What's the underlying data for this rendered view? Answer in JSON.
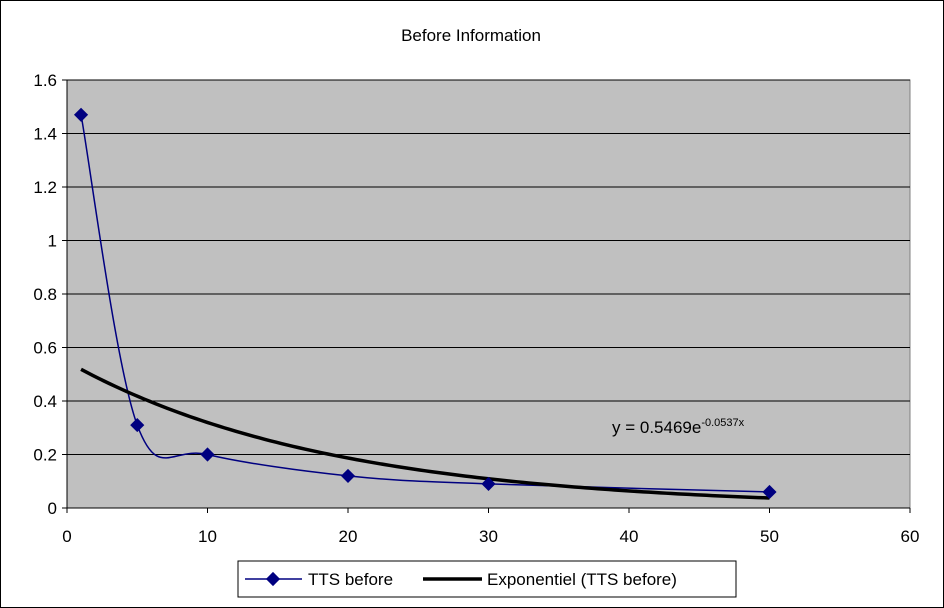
{
  "colors": {
    "plot_background": "#c0c0c0",
    "series": "#000080",
    "trendline": "#000000",
    "gridline": "#000000"
  },
  "chart_data": {
    "type": "scatter",
    "title": "Before Information",
    "xlabel": "",
    "ylabel": "",
    "xlim": [
      0,
      60
    ],
    "ylim": [
      0,
      1.6
    ],
    "x_ticks": [
      "0",
      "10",
      "20",
      "30",
      "40",
      "50",
      "60"
    ],
    "y_ticks": [
      "0",
      "0.2",
      "0.4",
      "0.6",
      "0.8",
      "1",
      "1.2",
      "1.4",
      "1.6"
    ],
    "grid": "horizontal major gridlines",
    "legend_position": "bottom",
    "series": [
      {
        "name": "TTS before",
        "marker": "diamond",
        "line": "smoothed",
        "x": [
          1,
          5,
          10,
          20,
          30,
          50
        ],
        "y": [
          1.47,
          0.31,
          0.2,
          0.12,
          0.09,
          0.06
        ]
      }
    ],
    "trendline": {
      "name": "Exponentiel (TTS before)",
      "kind": "exponential",
      "a": 0.5469,
      "b": -0.0537,
      "x_range": [
        1,
        50
      ],
      "equation_prefix": "y = 0.5469e",
      "equation_exponent": "-0.0537x"
    }
  }
}
